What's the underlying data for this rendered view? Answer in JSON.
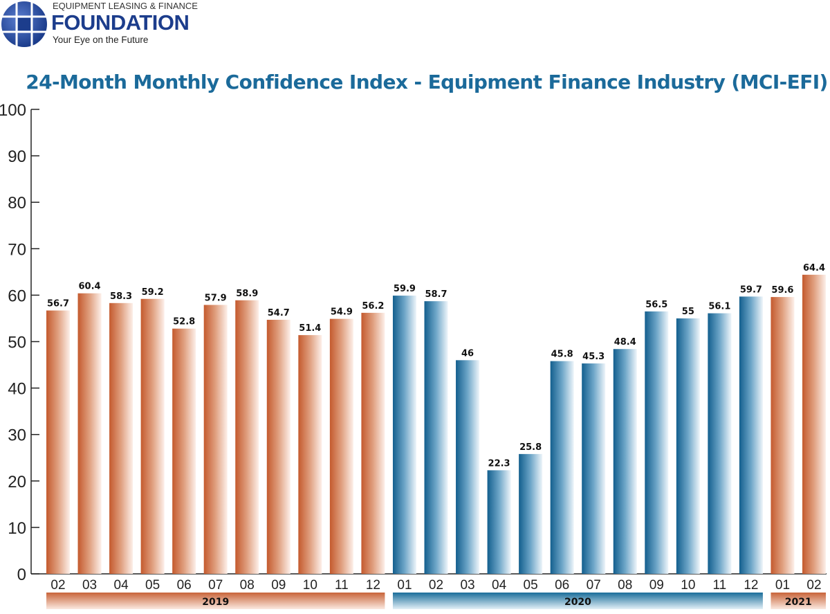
{
  "logo": {
    "top_text": "EQUIPMENT LEASING & FINANCE",
    "main_text": "FOUNDATION",
    "tagline": "Your Eye on the Future"
  },
  "chart_data": {
    "type": "bar",
    "title": "24-Month Monthly Confidence Index - Equipment Finance Industry (MCI-EFI)",
    "categories": [
      "02",
      "03",
      "04",
      "05",
      "06",
      "07",
      "08",
      "09",
      "10",
      "11",
      "12",
      "01",
      "02",
      "03",
      "04",
      "05",
      "06",
      "07",
      "08",
      "09",
      "10",
      "11",
      "12",
      "01",
      "02"
    ],
    "years": [
      "2019",
      "2019",
      "2019",
      "2019",
      "2019",
      "2019",
      "2019",
      "2019",
      "2019",
      "2019",
      "2019",
      "2020",
      "2020",
      "2020",
      "2020",
      "2020",
      "2020",
      "2020",
      "2020",
      "2020",
      "2020",
      "2020",
      "2020",
      "2021",
      "2021"
    ],
    "values": [
      56.7,
      60.4,
      58.3,
      59.2,
      52.8,
      57.9,
      58.9,
      54.7,
      51.4,
      54.9,
      56.2,
      59.9,
      58.7,
      46,
      22.3,
      25.8,
      45.8,
      45.3,
      48.4,
      56.5,
      55,
      56.1,
      59.7,
      59.6,
      64.4
    ],
    "year_groups": [
      {
        "label": "2019",
        "color": "#c8643a"
      },
      {
        "label": "2020",
        "color": "#1a6d9a"
      },
      {
        "label": "2021",
        "color": "#c8643a"
      }
    ],
    "ylim": [
      0,
      100
    ],
    "yticks": [
      0,
      10,
      20,
      30,
      40,
      50,
      60,
      70,
      80,
      90,
      100
    ],
    "xlabel": "",
    "ylabel": "",
    "grid": false
  }
}
